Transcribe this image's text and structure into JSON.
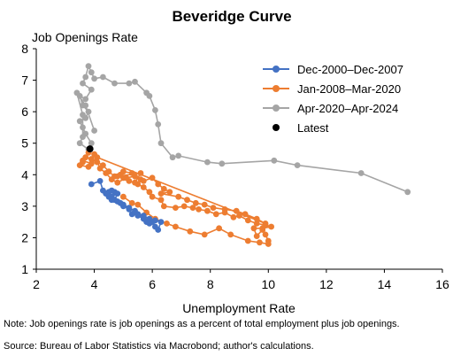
{
  "chart_data": {
    "type": "scatter",
    "title": "Beveridge Curve",
    "xlabel": "Unemployment Rate",
    "ylabel": "Job Openings Rate",
    "xlim": [
      2,
      16
    ],
    "ylim": [
      1,
      8
    ],
    "xticks": [
      "2",
      "4",
      "6",
      "8",
      "10",
      "12",
      "14",
      "16"
    ],
    "yticks": [
      "1",
      "2",
      "3",
      "4",
      "5",
      "6",
      "7",
      "8"
    ],
    "grid": false,
    "legend_position": "top-right",
    "series": [
      {
        "name": "Dec-2000–Dec-2007",
        "color": "#4472C4",
        "points": [
          [
            3.9,
            3.7
          ],
          [
            4.2,
            3.8
          ],
          [
            4.3,
            3.5
          ],
          [
            4.5,
            3.45
          ],
          [
            4.6,
            3.3
          ],
          [
            4.8,
            3.4
          ],
          [
            4.7,
            3.2
          ],
          [
            4.9,
            3.1
          ],
          [
            5.0,
            3.0
          ],
          [
            5.2,
            2.9
          ],
          [
            5.3,
            2.75
          ],
          [
            5.5,
            2.7
          ],
          [
            5.7,
            2.6
          ],
          [
            5.8,
            2.5
          ],
          [
            5.9,
            2.45
          ],
          [
            6.0,
            2.5
          ],
          [
            6.1,
            2.35
          ],
          [
            6.2,
            2.25
          ],
          [
            6.3,
            2.5
          ],
          [
            6.1,
            2.55
          ],
          [
            5.9,
            2.6
          ],
          [
            5.7,
            2.7
          ],
          [
            5.5,
            2.75
          ],
          [
            5.4,
            2.85
          ],
          [
            5.2,
            2.95
          ],
          [
            5.0,
            3.05
          ],
          [
            4.8,
            3.15
          ],
          [
            4.6,
            3.2
          ],
          [
            4.5,
            3.3
          ],
          [
            4.4,
            3.4
          ],
          [
            4.6,
            3.5
          ],
          [
            4.7,
            3.45
          ]
        ]
      },
      {
        "name": "Jan-2008–Mar-2020",
        "color": "#ED7D31",
        "points": [
          [
            5.0,
            3.3
          ],
          [
            5.3,
            3.1
          ],
          [
            5.5,
            3.05
          ],
          [
            5.8,
            2.8
          ],
          [
            6.1,
            2.6
          ],
          [
            6.5,
            2.45
          ],
          [
            6.8,
            2.35
          ],
          [
            7.3,
            2.2
          ],
          [
            7.8,
            2.1
          ],
          [
            8.3,
            2.3
          ],
          [
            8.7,
            2.1
          ],
          [
            9.3,
            1.9
          ],
          [
            9.7,
            1.85
          ],
          [
            10.0,
            1.8
          ],
          [
            10.0,
            1.9
          ],
          [
            9.9,
            2.1
          ],
          [
            9.8,
            2.25
          ],
          [
            9.6,
            2.05
          ],
          [
            9.5,
            2.3
          ],
          [
            9.8,
            2.3
          ],
          [
            10.1,
            2.35
          ],
          [
            9.9,
            2.4
          ],
          [
            9.6,
            2.45
          ],
          [
            9.3,
            2.55
          ],
          [
            9.0,
            2.7
          ],
          [
            8.8,
            2.65
          ],
          [
            8.5,
            2.8
          ],
          [
            8.2,
            2.75
          ],
          [
            7.9,
            2.85
          ],
          [
            7.6,
            2.9
          ],
          [
            7.4,
            2.95
          ],
          [
            7.1,
            3.0
          ],
          [
            6.8,
            2.95
          ],
          [
            6.4,
            3.0
          ],
          [
            6.3,
            3.2
          ],
          [
            6.0,
            3.3
          ],
          [
            5.9,
            3.45
          ],
          [
            5.7,
            3.6
          ],
          [
            5.5,
            3.7
          ],
          [
            5.2,
            3.8
          ],
          [
            5.0,
            3.9
          ],
          [
            4.9,
            4.0
          ],
          [
            4.7,
            3.95
          ],
          [
            4.5,
            4.1
          ],
          [
            4.3,
            4.3
          ],
          [
            4.1,
            4.4
          ],
          [
            3.9,
            4.5
          ],
          [
            3.7,
            4.55
          ],
          [
            3.6,
            4.4
          ],
          [
            3.5,
            4.3
          ],
          [
            3.8,
            4.25
          ],
          [
            4.0,
            4.65
          ],
          [
            4.2,
            4.2
          ],
          [
            4.4,
            4.05
          ],
          [
            4.6,
            3.85
          ],
          [
            4.8,
            3.75
          ],
          [
            5.1,
            3.9
          ],
          [
            5.4,
            3.95
          ],
          [
            5.6,
            3.85
          ],
          [
            5.3,
            4.05
          ],
          [
            5.0,
            4.1
          ],
          [
            4.8,
            3.95
          ],
          [
            5.6,
            4.05
          ],
          [
            5.4,
            3.75
          ],
          [
            5.7,
            3.8
          ],
          [
            6.0,
            3.9
          ],
          [
            6.2,
            3.7
          ],
          [
            6.4,
            3.55
          ],
          [
            6.6,
            3.45
          ],
          [
            6.3,
            3.4
          ],
          [
            6.9,
            3.3
          ],
          [
            7.2,
            3.2
          ],
          [
            7.5,
            3.1
          ],
          [
            7.8,
            3.05
          ],
          [
            8.1,
            2.95
          ],
          [
            8.5,
            2.9
          ],
          [
            8.9,
            2.85
          ],
          [
            9.2,
            2.75
          ],
          [
            9.6,
            2.6
          ],
          [
            9.9,
            2.45
          ],
          [
            4.1,
            4.55
          ],
          [
            3.9,
            4.35
          ],
          [
            3.6,
            4.45
          ],
          [
            3.8,
            4.7
          ]
        ]
      },
      {
        "name": "Apr-2020–Apr-2024",
        "color": "#A5A5A5",
        "points": [
          [
            14.8,
            3.45
          ],
          [
            13.2,
            4.05
          ],
          [
            11.0,
            4.3
          ],
          [
            10.2,
            4.45
          ],
          [
            8.4,
            4.35
          ],
          [
            7.9,
            4.4
          ],
          [
            6.9,
            4.6
          ],
          [
            6.7,
            4.55
          ],
          [
            6.3,
            5.0
          ],
          [
            6.2,
            5.6
          ],
          [
            6.1,
            6.05
          ],
          [
            5.9,
            6.5
          ],
          [
            5.8,
            6.6
          ],
          [
            5.4,
            6.95
          ],
          [
            5.2,
            6.9
          ],
          [
            4.7,
            6.9
          ],
          [
            4.3,
            7.1
          ],
          [
            4.0,
            7.05
          ],
          [
            3.9,
            7.25
          ],
          [
            3.8,
            7.45
          ],
          [
            3.7,
            7.1
          ],
          [
            3.6,
            6.9
          ],
          [
            3.9,
            6.7
          ],
          [
            3.7,
            6.4
          ],
          [
            3.5,
            6.5
          ],
          [
            3.6,
            6.2
          ],
          [
            3.8,
            6.0
          ],
          [
            3.7,
            5.8
          ],
          [
            3.5,
            5.7
          ],
          [
            3.6,
            5.5
          ],
          [
            3.7,
            5.3
          ],
          [
            3.9,
            5.0
          ],
          [
            3.8,
            4.8
          ],
          [
            3.5,
            5.0
          ],
          [
            3.6,
            5.2
          ],
          [
            3.6,
            5.9
          ],
          [
            3.4,
            6.6
          ],
          [
            3.7,
            6.2
          ],
          [
            4.0,
            5.4
          ]
        ]
      }
    ],
    "latest": {
      "name": "Latest",
      "color": "#000000",
      "point": [
        3.85,
        4.82
      ]
    }
  },
  "notes": {
    "note": "Note: Job openings rate is job openings as a percent of total employment plus job openings.",
    "source": "Source: Bureau of Labor Statistics via Macrobond; author's calculations."
  }
}
